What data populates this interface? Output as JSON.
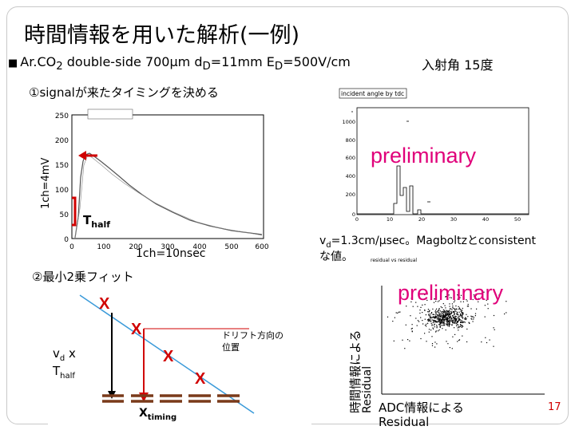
{
  "title": "時間情報を用いた解析(一例)",
  "subtitle": {
    "bullet": "■",
    "prefix": "Ar.CO",
    "sub_2": "2",
    "mid": " double-side 700µm d",
    "sub_d": "D",
    "mid2": "=11mm E",
    "sub_e": "D",
    "tail": "=500V/cm"
  },
  "angle_label": "入射角 15度",
  "step1": "①signalが来たタイミングを決める",
  "step2": "②最小2乗フィット",
  "waveform": {
    "ylabel": "1ch=4mV",
    "xlabel": "1ch=10nsec",
    "t_half": "T",
    "t_half_sub": "half",
    "y_ticks": [
      "250",
      "200",
      "150",
      "100",
      "50",
      "0"
    ],
    "x_ticks": [
      "0",
      "100",
      "200",
      "300",
      "400",
      "500",
      "600"
    ]
  },
  "tdc_hist": {
    "title": "incident angle by tdc",
    "y_ticks": [
      "1000",
      "800",
      "600",
      "400",
      "200",
      "0"
    ],
    "x_ticks": [
      "0",
      "10",
      "20",
      "30",
      "40",
      "50"
    ],
    "preliminary": "preliminary"
  },
  "vd_note": {
    "line1": "v",
    "sub": "d",
    "line1_tail": "=1.3cm/µsec。Magboltzとconsistent",
    "line2": "な値。"
  },
  "residual": {
    "title": "residual vs residual",
    "preliminary": "preliminary",
    "ylabel_jp": "時間情報による",
    "ylabel_en": "Residual",
    "xlabel_jp": "ADC情報による",
    "xlabel_en": "Residual"
  },
  "fit_diagram": {
    "marker": "X",
    "vd": "v",
    "vd_sub": "d",
    "times": " x",
    "t": "T",
    "t_sub": "half",
    "drift_label_1": "ドリフト方向の",
    "drift_label_2": "位置",
    "x_timing": "X",
    "x_timing_sub": "timing"
  },
  "page_number": "17",
  "colors": {
    "red": "#d00000",
    "preliminary": "#e0007a",
    "track": "#3a9ad9",
    "strip": "#7a3a1a"
  }
}
